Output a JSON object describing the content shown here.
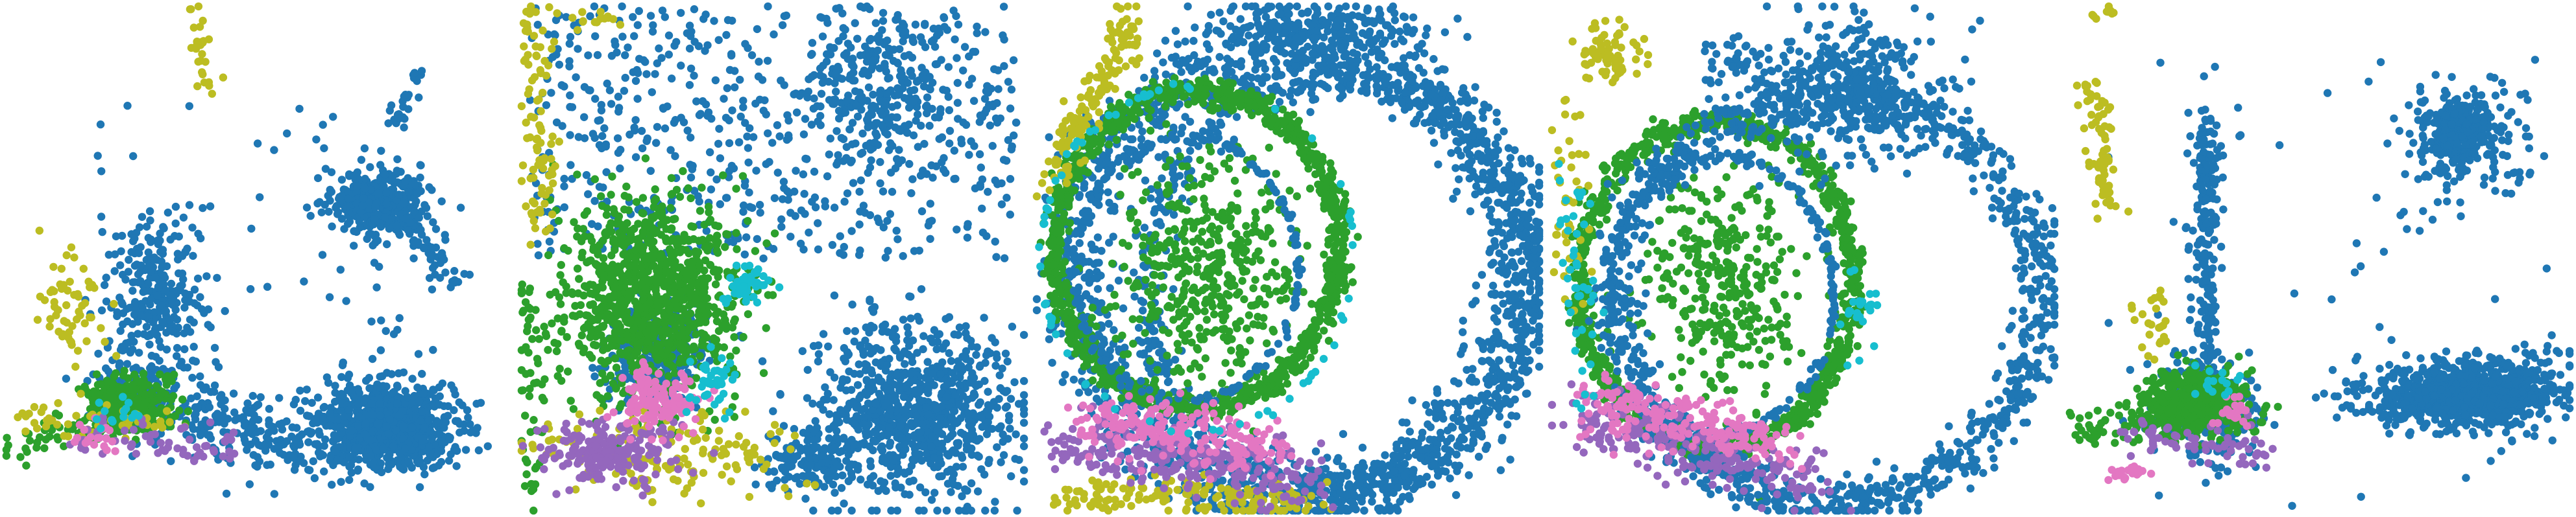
{
  "figure": {
    "background": "#ffffff",
    "panel_count": 5,
    "axes_visible": false
  },
  "palette": {
    "blue": "#1f77b4",
    "green": "#2ca02c",
    "olive": "#bcbd22",
    "purple": "#9467bd",
    "pink": "#e377c2",
    "cyan": "#17becf"
  },
  "chart_data": [
    {
      "type": "scatter",
      "title": "",
      "xlabel": "",
      "ylabel": "",
      "grid": false,
      "legend": "none",
      "clusters": [
        {
          "color": "blue",
          "shape": "blob",
          "cx": 0.75,
          "cy": 0.83,
          "rx": 0.14,
          "ry": 0.08,
          "n": 900
        },
        {
          "color": "blue",
          "shape": "blob",
          "cx": 0.74,
          "cy": 0.39,
          "rx": 0.09,
          "ry": 0.06,
          "n": 380
        },
        {
          "color": "blue",
          "shape": "line",
          "x1": 0.76,
          "y1": 0.4,
          "x2": 0.9,
          "y2": 0.54,
          "spread": 0.02,
          "n": 70
        },
        {
          "color": "blue",
          "shape": "line",
          "x1": 0.77,
          "y1": 0.24,
          "x2": 0.82,
          "y2": 0.13,
          "spread": 0.01,
          "n": 25
        },
        {
          "color": "blue",
          "shape": "line",
          "x1": 0.2,
          "y1": 0.74,
          "x2": 0.6,
          "y2": 0.88,
          "spread": 0.04,
          "n": 260
        },
        {
          "color": "blue",
          "shape": "blob",
          "cx": 0.3,
          "cy": 0.58,
          "rx": 0.09,
          "ry": 0.16,
          "n": 260
        },
        {
          "color": "blue",
          "shape": "scatter",
          "cx": 0.5,
          "cy": 0.55,
          "rx": 0.35,
          "ry": 0.35,
          "n": 90
        },
        {
          "color": "green",
          "shape": "blob",
          "cx": 0.24,
          "cy": 0.78,
          "rx": 0.07,
          "ry": 0.05,
          "n": 260
        },
        {
          "color": "green",
          "shape": "line",
          "x1": 0.02,
          "y1": 0.86,
          "x2": 0.36,
          "y2": 0.8,
          "spread": 0.02,
          "n": 90
        },
        {
          "color": "olive",
          "shape": "line",
          "x1": 0.38,
          "y1": 0.0,
          "x2": 0.4,
          "y2": 0.17,
          "spread": 0.008,
          "n": 28
        },
        {
          "color": "olive",
          "shape": "blob",
          "cx": 0.13,
          "cy": 0.6,
          "rx": 0.07,
          "ry": 0.12,
          "n": 60
        },
        {
          "color": "olive",
          "shape": "line",
          "x1": 0.04,
          "y1": 0.82,
          "x2": 0.35,
          "y2": 0.82,
          "spread": 0.015,
          "n": 50
        },
        {
          "color": "purple",
          "shape": "line",
          "x1": 0.14,
          "y1": 0.84,
          "x2": 0.45,
          "y2": 0.87,
          "spread": 0.02,
          "n": 60
        },
        {
          "color": "pink",
          "shape": "blob",
          "cx": 0.18,
          "cy": 0.85,
          "rx": 0.06,
          "ry": 0.03,
          "n": 20
        },
        {
          "color": "cyan",
          "shape": "blob",
          "cx": 0.22,
          "cy": 0.8,
          "rx": 0.05,
          "ry": 0.04,
          "n": 15
        }
      ]
    },
    {
      "type": "scatter",
      "title": "",
      "xlabel": "",
      "ylabel": "",
      "grid": false,
      "legend": "none",
      "clusters": [
        {
          "color": "blue",
          "shape": "scatter",
          "cx": 0.5,
          "cy": 0.25,
          "rx": 0.48,
          "ry": 0.25,
          "n": 650
        },
        {
          "color": "blue",
          "shape": "blob",
          "cx": 0.72,
          "cy": 0.18,
          "rx": 0.12,
          "ry": 0.14,
          "n": 220
        },
        {
          "color": "blue",
          "shape": "blob",
          "cx": 0.78,
          "cy": 0.8,
          "rx": 0.2,
          "ry": 0.17,
          "n": 850
        },
        {
          "color": "blue",
          "shape": "blob",
          "cx": 0.27,
          "cy": 0.68,
          "rx": 0.1,
          "ry": 0.1,
          "n": 260
        },
        {
          "color": "blue",
          "shape": "blob",
          "cx": 0.58,
          "cy": 0.9,
          "rx": 0.1,
          "ry": 0.06,
          "n": 140
        },
        {
          "color": "green",
          "shape": "blob",
          "cx": 0.26,
          "cy": 0.58,
          "rx": 0.17,
          "ry": 0.19,
          "n": 1050
        },
        {
          "color": "green",
          "shape": "line",
          "x1": 0.02,
          "y1": 0.55,
          "x2": 0.03,
          "y2": 0.98,
          "spread": 0.015,
          "n": 60
        },
        {
          "color": "olive",
          "shape": "line",
          "x1": 0.03,
          "y1": 0.0,
          "x2": 0.05,
          "y2": 0.45,
          "spread": 0.015,
          "n": 90
        },
        {
          "color": "olive",
          "shape": "blob",
          "cx": 0.28,
          "cy": 0.88,
          "rx": 0.25,
          "ry": 0.08,
          "n": 160
        },
        {
          "color": "olive",
          "shape": "blob",
          "cx": 0.15,
          "cy": 0.03,
          "rx": 0.05,
          "ry": 0.02,
          "n": 15
        },
        {
          "color": "purple",
          "shape": "blob",
          "cx": 0.18,
          "cy": 0.88,
          "rx": 0.13,
          "ry": 0.06,
          "n": 200
        },
        {
          "color": "pink",
          "shape": "blob",
          "cx": 0.28,
          "cy": 0.78,
          "rx": 0.08,
          "ry": 0.06,
          "n": 150
        },
        {
          "color": "cyan",
          "shape": "blob",
          "cx": 0.45,
          "cy": 0.55,
          "rx": 0.05,
          "ry": 0.05,
          "n": 50
        },
        {
          "color": "cyan",
          "shape": "blob",
          "cx": 0.38,
          "cy": 0.74,
          "rx": 0.05,
          "ry": 0.05,
          "n": 40
        }
      ]
    },
    {
      "type": "scatter",
      "title": "",
      "xlabel": "",
      "ylabel": "",
      "grid": false,
      "legend": "none",
      "clusters": [
        {
          "color": "blue",
          "shape": "ring",
          "cx": 0.52,
          "cy": 0.53,
          "rx": 0.44,
          "ry": 0.44,
          "thick": 0.09,
          "n": 1500
        },
        {
          "color": "blue",
          "shape": "ring",
          "cx": 0.6,
          "cy": 0.55,
          "rx": 0.38,
          "ry": 0.4,
          "thick": 0.05,
          "n": 700
        },
        {
          "color": "blue",
          "shape": "blob",
          "cx": 0.56,
          "cy": 0.05,
          "rx": 0.22,
          "ry": 0.05,
          "n": 220
        },
        {
          "color": "green",
          "shape": "ring",
          "cx": 0.32,
          "cy": 0.48,
          "rx": 0.28,
          "ry": 0.31,
          "thick": 0.04,
          "n": 1150
        },
        {
          "color": "green",
          "shape": "blob",
          "cx": 0.34,
          "cy": 0.52,
          "rx": 0.18,
          "ry": 0.22,
          "n": 450
        },
        {
          "color": "blue",
          "shape": "ring",
          "cx": 0.3,
          "cy": 0.52,
          "rx": 0.22,
          "ry": 0.26,
          "thick": 0.02,
          "n": 180
        },
        {
          "color": "olive",
          "shape": "line",
          "x1": 0.03,
          "y1": 0.35,
          "x2": 0.2,
          "y2": 0.02,
          "spread": 0.02,
          "n": 140
        },
        {
          "color": "olive",
          "shape": "line",
          "x1": 0.05,
          "y1": 0.96,
          "x2": 0.55,
          "y2": 0.98,
          "spread": 0.02,
          "n": 150
        },
        {
          "color": "purple",
          "shape": "line",
          "x1": 0.05,
          "y1": 0.86,
          "x2": 0.55,
          "y2": 0.93,
          "spread": 0.03,
          "n": 260
        },
        {
          "color": "pink",
          "shape": "line",
          "x1": 0.1,
          "y1": 0.82,
          "x2": 0.45,
          "y2": 0.87,
          "spread": 0.03,
          "n": 220
        },
        {
          "color": "cyan",
          "shape": "ring",
          "cx": 0.32,
          "cy": 0.5,
          "rx": 0.31,
          "ry": 0.34,
          "thick": 0.01,
          "n": 70
        }
      ]
    },
    {
      "type": "scatter",
      "title": "",
      "xlabel": "",
      "ylabel": "",
      "grid": false,
      "legend": "none",
      "clusters": [
        {
          "color": "green",
          "shape": "ring",
          "cx": 0.33,
          "cy": 0.55,
          "rx": 0.27,
          "ry": 0.32,
          "thick": 0.04,
          "n": 1000
        },
        {
          "color": "green",
          "shape": "blob",
          "cx": 0.34,
          "cy": 0.55,
          "rx": 0.17,
          "ry": 0.22,
          "n": 350
        },
        {
          "color": "blue",
          "shape": "ring",
          "cx": 0.34,
          "cy": 0.57,
          "rx": 0.22,
          "ry": 0.27,
          "thick": 0.02,
          "n": 220
        },
        {
          "color": "blue",
          "shape": "ring",
          "cx": 0.55,
          "cy": 0.58,
          "rx": 0.42,
          "ry": 0.4,
          "thick": 0.06,
          "n": 1100
        },
        {
          "color": "blue",
          "shape": "blob",
          "cx": 0.6,
          "cy": 0.16,
          "rx": 0.18,
          "ry": 0.14,
          "n": 380
        },
        {
          "color": "blue",
          "shape": "line",
          "x1": 0.3,
          "y1": 0.12,
          "x2": 0.45,
          "y2": 0.1,
          "spread": 0.02,
          "n": 40
        },
        {
          "color": "olive",
          "shape": "blob",
          "cx": 0.12,
          "cy": 0.1,
          "rx": 0.06,
          "ry": 0.06,
          "n": 70
        },
        {
          "color": "olive",
          "shape": "line",
          "x1": 0.03,
          "y1": 0.2,
          "x2": 0.06,
          "y2": 0.6,
          "spread": 0.02,
          "n": 45
        },
        {
          "color": "purple",
          "shape": "line",
          "x1": 0.05,
          "y1": 0.8,
          "x2": 0.55,
          "y2": 0.96,
          "spread": 0.03,
          "n": 240
        },
        {
          "color": "pink",
          "shape": "line",
          "x1": 0.08,
          "y1": 0.78,
          "x2": 0.45,
          "y2": 0.86,
          "spread": 0.03,
          "n": 210
        },
        {
          "color": "cyan",
          "shape": "line",
          "x1": 0.05,
          "y1": 0.35,
          "x2": 0.08,
          "y2": 0.8,
          "spread": 0.02,
          "n": 45
        },
        {
          "color": "cyan",
          "shape": "blob",
          "cx": 0.62,
          "cy": 0.6,
          "rx": 0.04,
          "ry": 0.08,
          "n": 25
        }
      ]
    },
    {
      "type": "scatter",
      "title": "",
      "xlabel": "",
      "ylabel": "",
      "grid": false,
      "legend": "none",
      "clusters": [
        {
          "color": "blue",
          "shape": "blob",
          "cx": 0.8,
          "cy": 0.77,
          "rx": 0.16,
          "ry": 0.06,
          "n": 800
        },
        {
          "color": "blue",
          "shape": "line",
          "x1": 0.55,
          "y1": 0.78,
          "x2": 0.98,
          "y2": 0.72,
          "spread": 0.03,
          "n": 200
        },
        {
          "color": "blue",
          "shape": "blob",
          "cx": 0.78,
          "cy": 0.26,
          "rx": 0.07,
          "ry": 0.07,
          "n": 320
        },
        {
          "color": "blue",
          "shape": "scatter",
          "cx": 0.78,
          "cy": 0.28,
          "rx": 0.14,
          "ry": 0.14,
          "n": 70
        },
        {
          "color": "blue",
          "shape": "line",
          "x1": 0.28,
          "y1": 0.72,
          "x2": 0.28,
          "y2": 0.22,
          "spread": 0.015,
          "n": 200
        },
        {
          "color": "blue",
          "shape": "blob",
          "cx": 0.28,
          "cy": 0.8,
          "rx": 0.1,
          "ry": 0.09,
          "n": 300
        },
        {
          "color": "blue",
          "shape": "scatter",
          "cx": 0.5,
          "cy": 0.55,
          "rx": 0.45,
          "ry": 0.45,
          "n": 60
        },
        {
          "color": "green",
          "shape": "blob",
          "cx": 0.25,
          "cy": 0.78,
          "rx": 0.1,
          "ry": 0.06,
          "n": 420
        },
        {
          "color": "green",
          "shape": "line",
          "x1": 0.02,
          "y1": 0.84,
          "x2": 0.4,
          "y2": 0.8,
          "spread": 0.02,
          "n": 110
        },
        {
          "color": "olive",
          "shape": "line",
          "x1": 0.05,
          "y1": 0.15,
          "x2": 0.09,
          "y2": 0.4,
          "spread": 0.015,
          "n": 70
        },
        {
          "color": "olive",
          "shape": "blob",
          "cx": 0.08,
          "cy": 0.02,
          "rx": 0.02,
          "ry": 0.015,
          "n": 10
        },
        {
          "color": "olive",
          "shape": "blob",
          "cx": 0.17,
          "cy": 0.62,
          "rx": 0.05,
          "ry": 0.06,
          "n": 25
        },
        {
          "color": "purple",
          "shape": "line",
          "x1": 0.12,
          "y1": 0.85,
          "x2": 0.4,
          "y2": 0.88,
          "spread": 0.02,
          "n": 70
        },
        {
          "color": "pink",
          "shape": "blob",
          "cx": 0.12,
          "cy": 0.92,
          "rx": 0.04,
          "ry": 0.02,
          "n": 25
        },
        {
          "color": "pink",
          "shape": "blob",
          "cx": 0.34,
          "cy": 0.8,
          "rx": 0.05,
          "ry": 0.04,
          "n": 25
        },
        {
          "color": "cyan",
          "shape": "blob",
          "cx": 0.3,
          "cy": 0.74,
          "rx": 0.05,
          "ry": 0.04,
          "n": 15
        }
      ]
    }
  ]
}
